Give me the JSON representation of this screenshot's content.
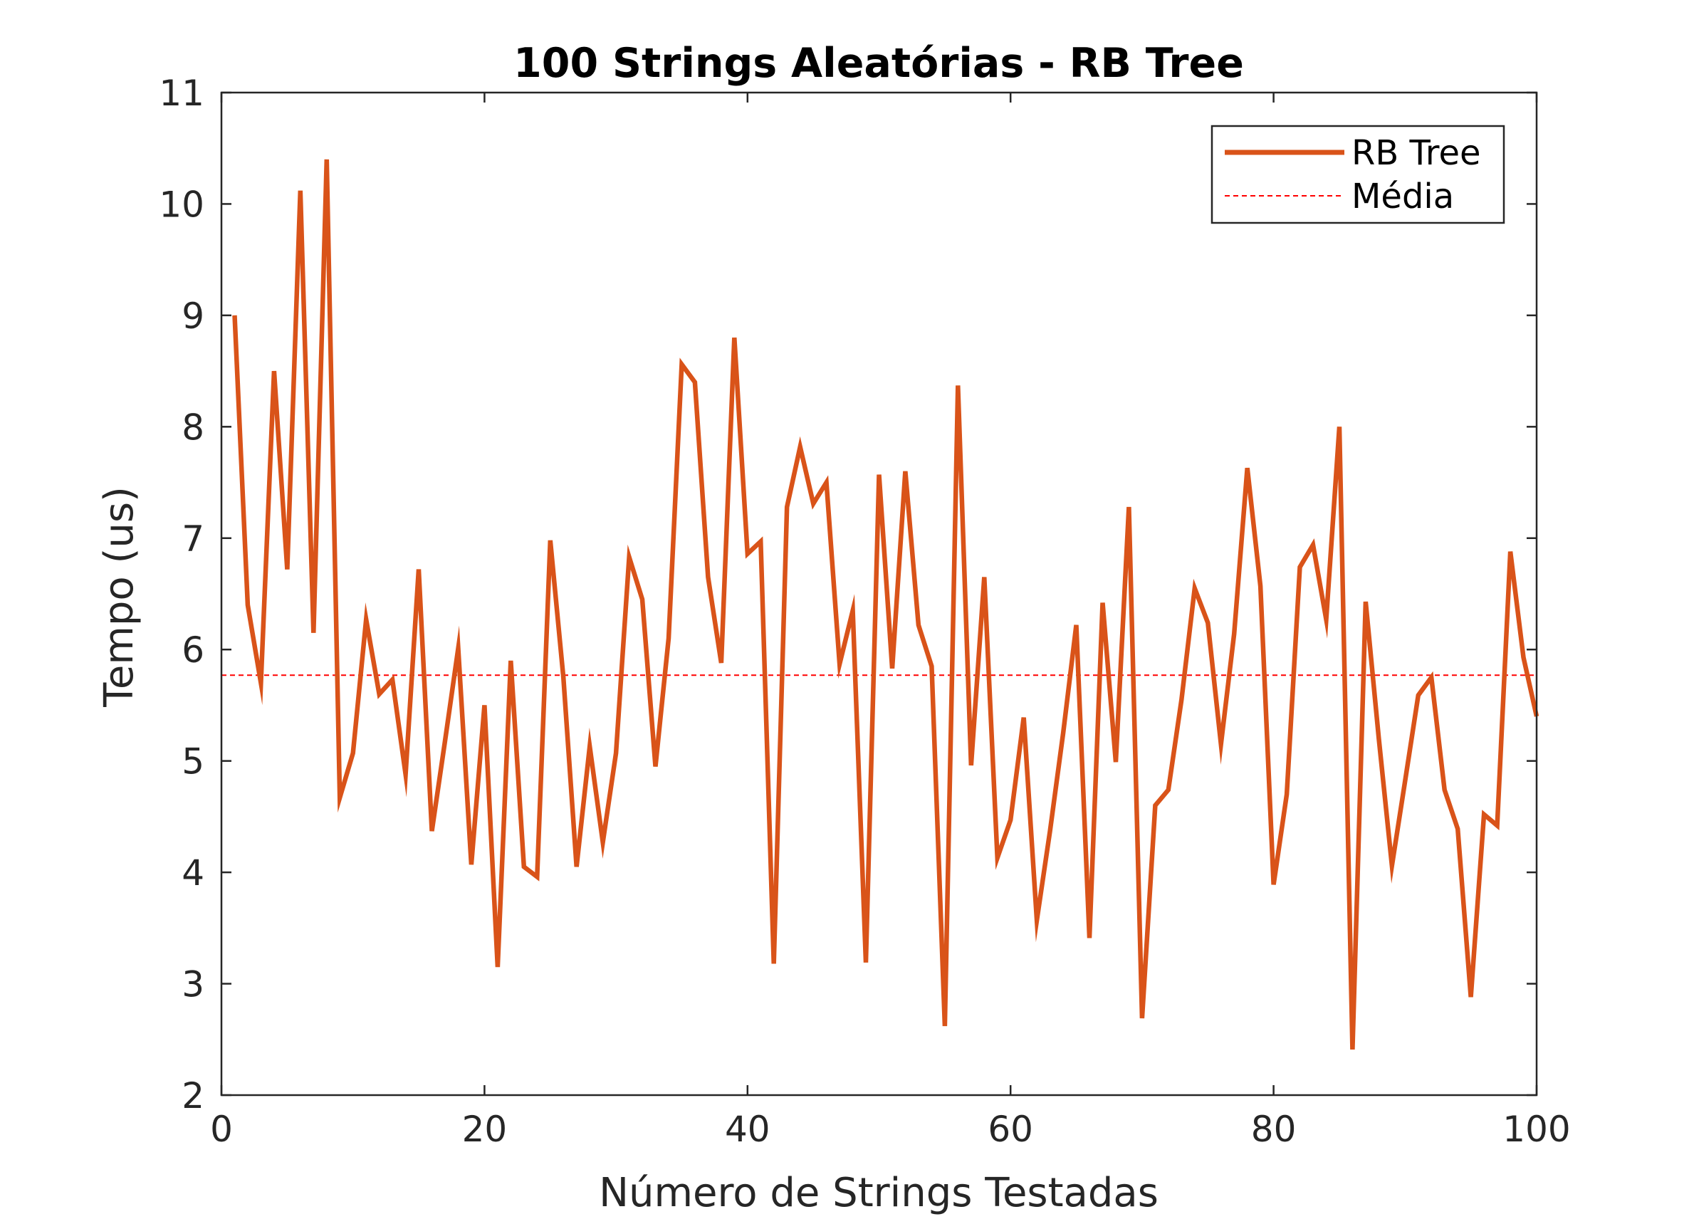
{
  "chart_data": {
    "type": "line",
    "title": "100 Strings Aleatórias - RB Tree",
    "xlabel": "Número de Strings Testadas",
    "ylabel": "Tempo (us)",
    "xlim": [
      0,
      100
    ],
    "ylim": [
      2,
      11
    ],
    "xticks": [
      0,
      20,
      40,
      60,
      80,
      100
    ],
    "yticks": [
      2,
      3,
      4,
      5,
      6,
      7,
      8,
      9,
      10,
      11
    ],
    "grid": false,
    "legend_position": "top-right",
    "series": [
      {
        "name": "RB Tree",
        "color": "#D95319",
        "style": "solid",
        "x": [
          1,
          2,
          3,
          4,
          5,
          6,
          7,
          8,
          9,
          10,
          11,
          12,
          13,
          14,
          15,
          16,
          17,
          18,
          19,
          20,
          21,
          22,
          23,
          24,
          25,
          26,
          27,
          28,
          29,
          30,
          31,
          32,
          33,
          34,
          35,
          36,
          37,
          38,
          39,
          40,
          41,
          42,
          43,
          44,
          45,
          46,
          47,
          48,
          49,
          50,
          51,
          52,
          53,
          54,
          55,
          56,
          57,
          58,
          59,
          60,
          61,
          62,
          63,
          64,
          65,
          66,
          67,
          68,
          69,
          70,
          71,
          72,
          73,
          74,
          75,
          76,
          77,
          78,
          79,
          80,
          81,
          82,
          83,
          84,
          85,
          86,
          87,
          88,
          89,
          90,
          91,
          92,
          93,
          94,
          95,
          96,
          97,
          98,
          99,
          100
        ],
        "values": [
          9.0,
          6.4,
          5.7,
          8.5,
          6.72,
          10.12,
          6.15,
          10.4,
          4.67,
          5.07,
          6.27,
          5.6,
          5.73,
          4.88,
          6.72,
          4.37,
          5.18,
          6.01,
          4.07,
          5.5,
          3.15,
          5.9,
          4.05,
          3.96,
          6.98,
          5.75,
          4.05,
          5.13,
          4.27,
          5.07,
          6.83,
          6.45,
          4.95,
          6.1,
          8.56,
          8.4,
          6.65,
          5.88,
          8.8,
          6.86,
          6.97,
          3.18,
          7.28,
          7.82,
          7.31,
          7.5,
          5.87,
          6.35,
          3.19,
          7.57,
          5.83,
          7.6,
          6.22,
          5.85,
          2.62,
          8.37,
          4.96,
          6.65,
          4.13,
          4.47,
          5.39,
          3.57,
          4.37,
          5.25,
          6.22,
          3.41,
          6.42,
          4.99,
          7.28,
          2.69,
          4.6,
          4.74,
          5.55,
          6.55,
          6.24,
          5.15,
          6.14,
          7.63,
          6.57,
          3.89,
          4.7,
          6.74,
          6.94,
          6.27,
          8.0,
          2.41,
          6.43,
          5.2,
          4.06,
          4.82,
          5.59,
          5.75,
          4.74,
          4.39,
          2.88,
          4.52,
          4.42,
          6.88,
          5.93,
          5.4
        ]
      },
      {
        "name": "Média",
        "color": "#FF0000",
        "style": "dashed",
        "value": 5.77
      }
    ]
  }
}
